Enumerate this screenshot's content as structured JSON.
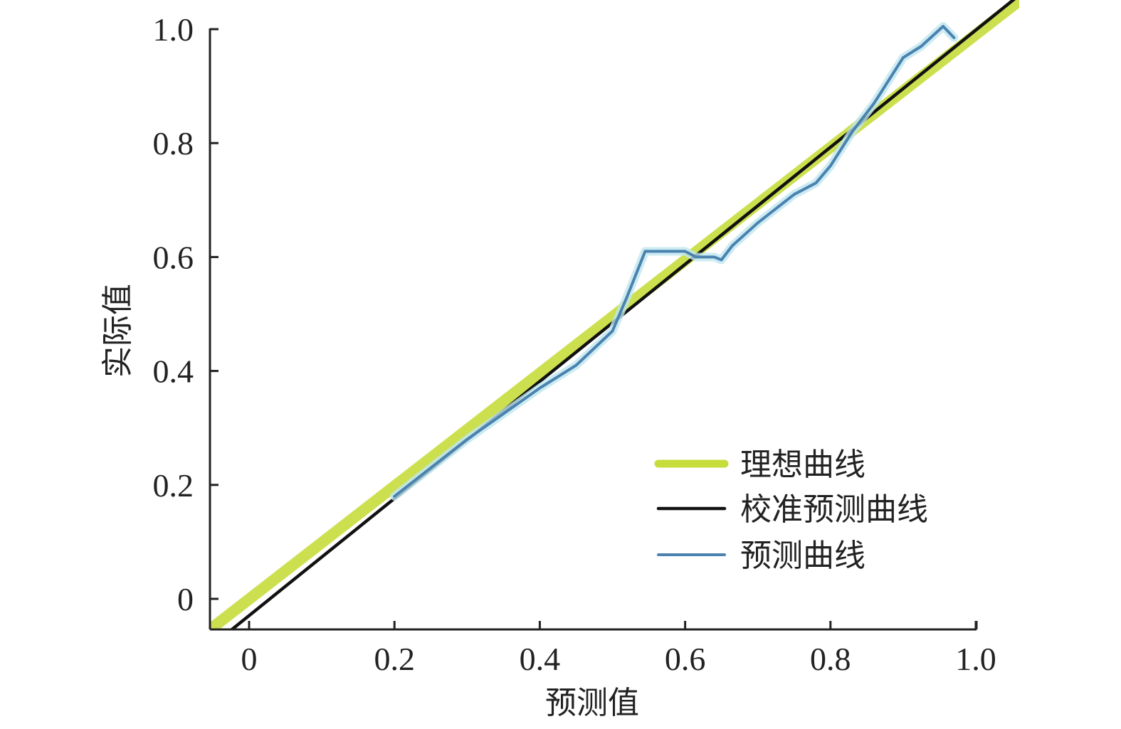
{
  "chart_data": {
    "type": "line",
    "xlabel": "预测值",
    "ylabel": "实际值",
    "xlim": [
      -0.055,
      1.0
    ],
    "ylim": [
      -0.055,
      1.0
    ],
    "x_ticks": [
      {
        "value": 0,
        "label": "0"
      },
      {
        "value": 0.2,
        "label": "0.2"
      },
      {
        "value": 0.4,
        "label": "0.4"
      },
      {
        "value": 0.6,
        "label": "0.6"
      },
      {
        "value": 0.8,
        "label": "0.8"
      },
      {
        "value": 1.0,
        "label": "1.0"
      }
    ],
    "y_ticks": [
      {
        "value": 0,
        "label": "0"
      },
      {
        "value": 0.2,
        "label": "0.2"
      },
      {
        "value": 0.4,
        "label": "0.4"
      },
      {
        "value": 0.6,
        "label": "0.6"
      },
      {
        "value": 0.8,
        "label": "0.8"
      },
      {
        "value": 1.0,
        "label": "1.0"
      }
    ],
    "grid": false,
    "legend_position": "bottom-right",
    "series": [
      {
        "name": "理想曲线",
        "color": "#c6dd3c",
        "points": [
          [
            -0.055,
            -0.055
          ],
          [
            1.07,
            1.06
          ]
        ]
      },
      {
        "name": "校准预测曲线",
        "color": "#111111",
        "points": [
          [
            -0.025,
            -0.055
          ],
          [
            1.06,
            1.06
          ]
        ]
      },
      {
        "name": "预测曲线",
        "color": "#4a82b0",
        "points": [
          [
            0.2,
            0.18
          ],
          [
            0.3,
            0.28
          ],
          [
            0.4,
            0.37
          ],
          [
            0.45,
            0.41
          ],
          [
            0.5,
            0.47
          ],
          [
            0.52,
            0.53
          ],
          [
            0.545,
            0.61
          ],
          [
            0.6,
            0.61
          ],
          [
            0.615,
            0.6
          ],
          [
            0.64,
            0.6
          ],
          [
            0.65,
            0.595
          ],
          [
            0.665,
            0.62
          ],
          [
            0.7,
            0.66
          ],
          [
            0.75,
            0.71
          ],
          [
            0.78,
            0.73
          ],
          [
            0.8,
            0.76
          ],
          [
            0.83,
            0.82
          ],
          [
            0.86,
            0.87
          ],
          [
            0.9,
            0.95
          ],
          [
            0.925,
            0.97
          ],
          [
            0.955,
            1.005
          ],
          [
            0.97,
            0.985
          ]
        ]
      }
    ]
  }
}
